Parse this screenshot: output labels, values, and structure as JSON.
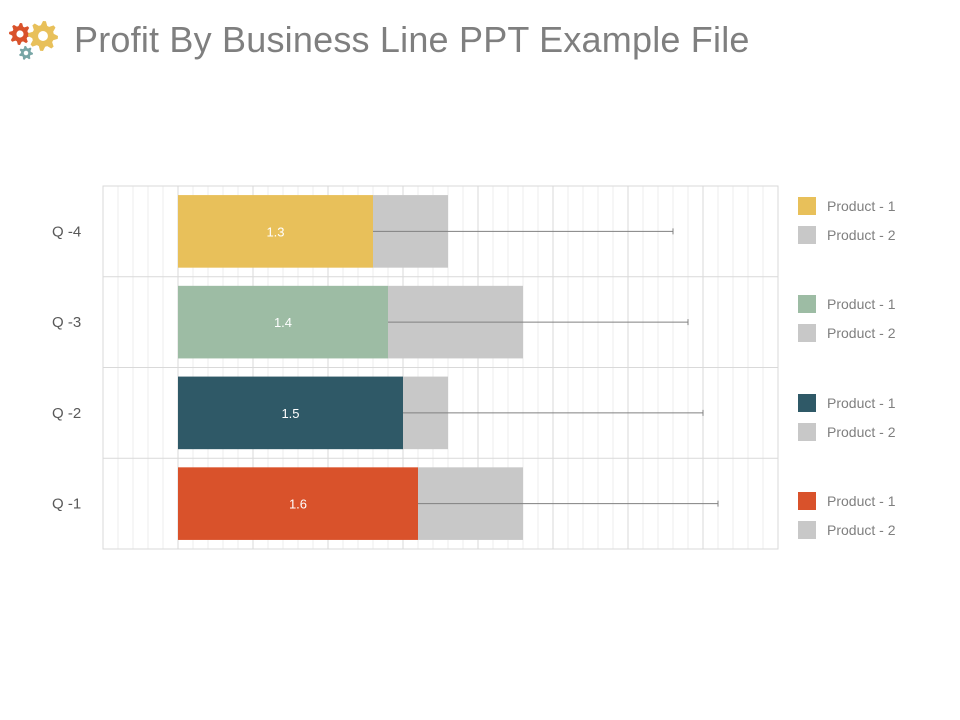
{
  "header": {
    "title": "Profit By Business Line PPT Example File",
    "icon": "gears-icon",
    "icon_colors": [
      "#d9522b",
      "#e8c05a",
      "#78a6a6"
    ]
  },
  "chart_data": {
    "type": "bar",
    "orientation": "horizontal",
    "categories": [
      "Q -4",
      "Q -3",
      "Q -2",
      "Q -1"
    ],
    "series": [
      {
        "name": "Product - 1",
        "values": [
          1.3,
          1.4,
          1.5,
          1.6
        ]
      },
      {
        "name": "Product - 2",
        "values": [
          0.5,
          0.9,
          0.3,
          0.7
        ]
      }
    ],
    "data_labels": [
      "1.3",
      "1.4",
      "1.5",
      "1.6"
    ],
    "error_bar_ends": [
      3.3,
      3.4,
      3.5,
      3.6
    ],
    "xlim": [
      -0.5,
      4.0
    ],
    "grid": true,
    "legend_position": "right",
    "colors": {
      "product_1": [
        "#e8c05a",
        "#9dbca4",
        "#2f5967",
        "#d9522b"
      ],
      "product_2": "#c8c8c8",
      "grid": "#d9d9d9",
      "error_bar": "#808080",
      "label": "#ffffff"
    }
  },
  "legend": {
    "groups": [
      {
        "items": [
          {
            "label": "Product - 1",
            "color": "#e8c05a"
          },
          {
            "label": "Product - 2",
            "color": "#c8c8c8"
          }
        ]
      },
      {
        "items": [
          {
            "label": "Product - 1",
            "color": "#9dbca4"
          },
          {
            "label": "Product - 2",
            "color": "#c8c8c8"
          }
        ]
      },
      {
        "items": [
          {
            "label": "Product - 1",
            "color": "#2f5967"
          },
          {
            "label": "Product - 2",
            "color": "#c8c8c8"
          }
        ]
      },
      {
        "items": [
          {
            "label": "Product - 1",
            "color": "#d9522b"
          },
          {
            "label": "Product - 2",
            "color": "#c8c8c8"
          }
        ]
      }
    ]
  }
}
